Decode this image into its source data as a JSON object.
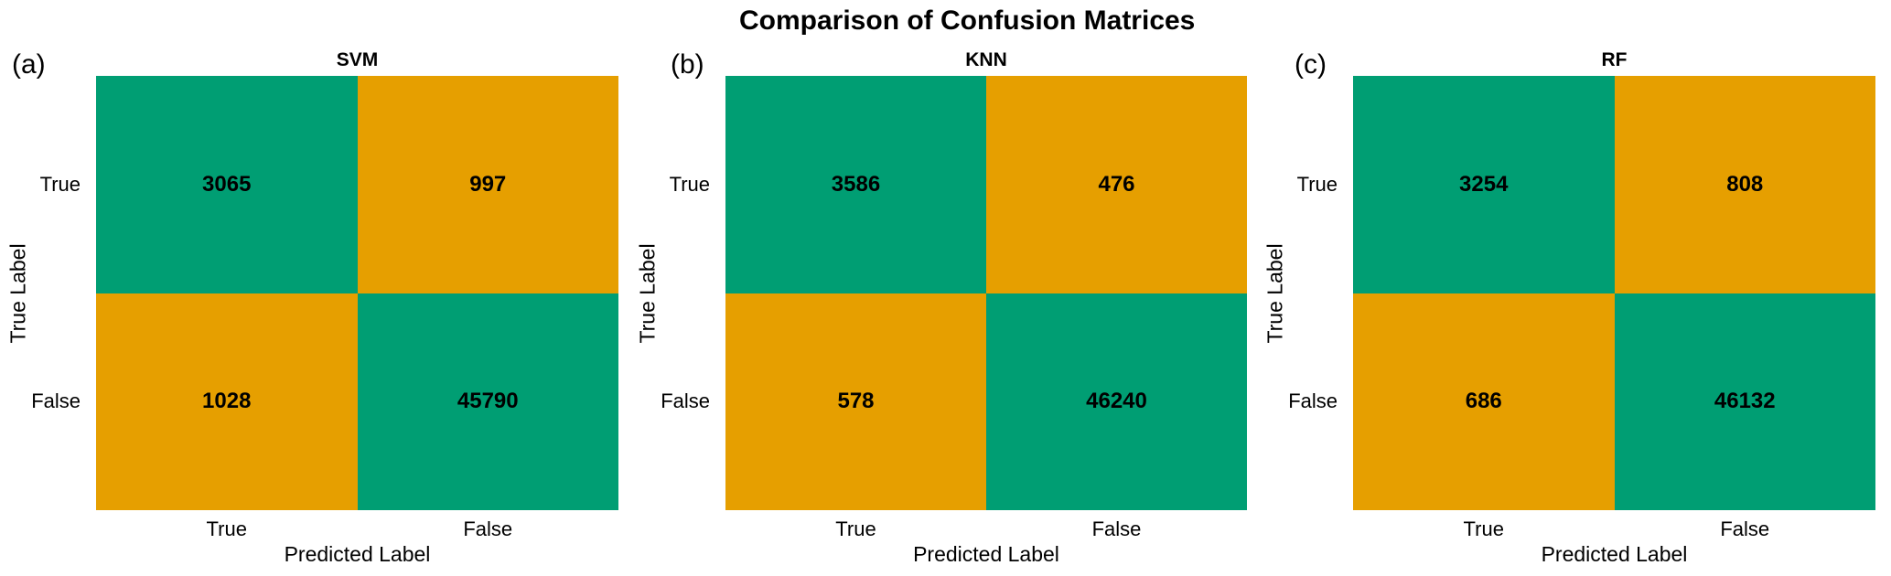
{
  "figure_title": "Comparison of Confusion Matrices",
  "palette": {
    "diagonal_green": "#009E73",
    "offdiagonal_orange": "#E69F00",
    "text": "#000000",
    "background": "#FFFFFF"
  },
  "chart_data": [
    {
      "type": "heatmap",
      "panel": "(a)",
      "title": "SVM",
      "xlabel": "Predicted Label",
      "ylabel": "True Label",
      "x_categories": [
        "True",
        "False"
      ],
      "y_categories": [
        "True",
        "False"
      ],
      "values": [
        [
          3065,
          997
        ],
        [
          1028,
          45790
        ]
      ],
      "cell_colors": [
        [
          "#009E73",
          "#E69F00"
        ],
        [
          "#E69F00",
          "#009E73"
        ]
      ],
      "legend": "none",
      "grid": false
    },
    {
      "type": "heatmap",
      "panel": "(b)",
      "title": "KNN",
      "xlabel": "Predicted Label",
      "ylabel": "True Label",
      "x_categories": [
        "True",
        "False"
      ],
      "y_categories": [
        "True",
        "False"
      ],
      "values": [
        [
          3586,
          476
        ],
        [
          578,
          46240
        ]
      ],
      "cell_colors": [
        [
          "#009E73",
          "#E69F00"
        ],
        [
          "#E69F00",
          "#009E73"
        ]
      ],
      "legend": "none",
      "grid": false
    },
    {
      "type": "heatmap",
      "panel": "(c)",
      "title": "RF",
      "xlabel": "Predicted Label",
      "ylabel": "True Label",
      "x_categories": [
        "True",
        "False"
      ],
      "y_categories": [
        "True",
        "False"
      ],
      "values": [
        [
          3254,
          808
        ],
        [
          686,
          46132
        ]
      ],
      "cell_colors": [
        [
          "#009E73",
          "#E69F00"
        ],
        [
          "#E69F00",
          "#009E73"
        ]
      ],
      "legend": "none",
      "grid": false
    }
  ]
}
